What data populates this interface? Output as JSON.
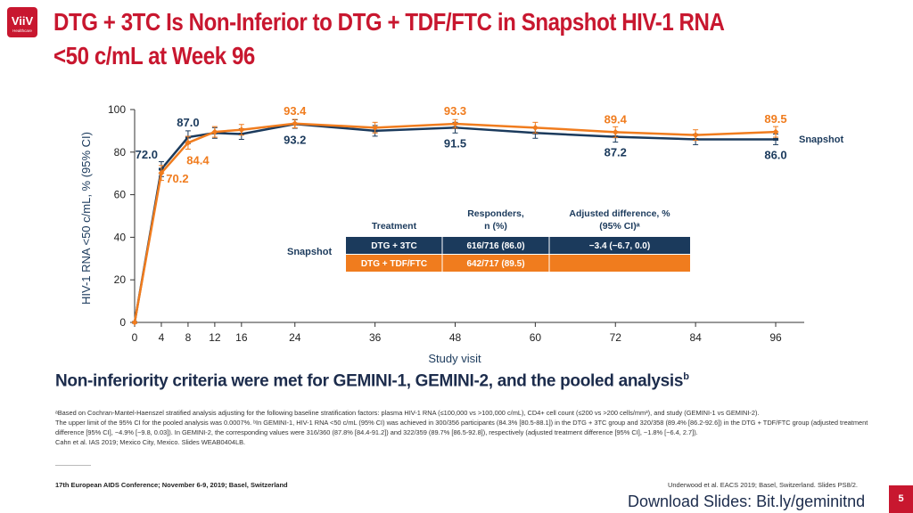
{
  "slide": {
    "logo_text": "ViiV",
    "logo_subtext": "Healthcare",
    "title_line1": "DTG + 3TC Is Non-Inferior to DTG + TDF/FTC in Snapshot HIV-1 RNA",
    "title_line2": "<50 c/mL at Week 96",
    "subheading": "Non-inferiority criteria were met for GEMINI-1, GEMINI-2, and the pooled analysis",
    "subheading_sup": "b",
    "footnote_1": "ᵃBased on Cochran-Mantel-Haenszel stratified analysis adjusting for the following baseline stratification factors: plasma HIV-1 RNA (≤100,000 vs >100,000 c/mL), CD4+ cell count (≤200 vs >200 cells/mm³), and study (GEMINI-1 vs GEMINI-2).",
    "footnote_2": "The upper limit of the 95% CI for the pooled analysis was 0.0007%. ᵇIn GEMINI-1, HIV-1 RNA <50 c/mL (95% CI) was achieved in 300/356 participants (84.3% [80.5-88.1]) in the DTG + 3TC group and 320/358 (89.4% [86.2-92.6]) in the DTG + TDF/FTC group (adjusted treatment difference [95% CI], −4.9% [−9.8, 0.03]). In GEMINI-2, the corresponding values were 316/360 (87.8% [84.4-91.2]) and 322/359 (89.7% [86.5-92.8]), respectively (adjusted treatment difference [95% CI], −1.8% [−6.4, 2.7]).",
    "footnote_3": "Cahn et al. IAS 2019; Mexico City, Mexico. Slides WEAB0404LB.",
    "conference": "17th European AIDS Conference; November 6-9, 2019; Basel, Switzerland",
    "reference": "Underwood et al. EACS 2019; Basel, Switzerland. Slides PS8/2.",
    "download": "Download Slides: Bit.ly/geminitnd",
    "page_number": "5"
  },
  "chart_data": {
    "type": "line",
    "xlabel": "Study visit",
    "ylabel": "HIV-1 RNA <50 c/mL, % (95% CI)",
    "ylim": [
      0,
      100
    ],
    "yticks": [
      0,
      20,
      40,
      60,
      80,
      100
    ],
    "xticks": [
      0,
      4,
      8,
      12,
      16,
      24,
      36,
      48,
      60,
      72,
      84,
      96
    ],
    "x": [
      0,
      4,
      8,
      12,
      16,
      24,
      36,
      48,
      60,
      72,
      84,
      96
    ],
    "series_end_label": "Snapshot",
    "series": [
      {
        "name": "DTG + 3TC",
        "color": "#1b3a5c",
        "values": [
          0,
          72.0,
          87.0,
          89,
          88.5,
          93.2,
          90,
          91.5,
          89,
          87.2,
          86,
          86.0
        ],
        "ci_half": [
          0,
          3.5,
          3,
          2.5,
          2.5,
          2,
          2.5,
          2.5,
          2.5,
          2.5,
          2.5,
          2.5
        ],
        "labels": [
          {
            "x": 4,
            "text": "72.0",
            "pos": "above-left"
          },
          {
            "x": 8,
            "text": "87.0",
            "pos": "above"
          },
          {
            "x": 24,
            "text": "93.2",
            "pos": "below"
          },
          {
            "x": 48,
            "text": "91.5",
            "pos": "below"
          },
          {
            "x": 72,
            "text": "87.2",
            "pos": "below"
          },
          {
            "x": 96,
            "text": "86.0",
            "pos": "below"
          }
        ]
      },
      {
        "name": "DTG + TDF/FTC",
        "color": "#f07c1e",
        "values": [
          0,
          70.2,
          84.4,
          89.5,
          90.5,
          93.4,
          91.5,
          93.3,
          91.5,
          89.4,
          88,
          89.5
        ],
        "ci_half": [
          0,
          3.5,
          3,
          2.5,
          2.5,
          2,
          2.5,
          2,
          2.5,
          2.5,
          2.5,
          2.5
        ],
        "labels": [
          {
            "x": 4,
            "text": "70.2",
            "pos": "below"
          },
          {
            "x": 8,
            "text": "84.4",
            "pos": "below"
          },
          {
            "x": 24,
            "text": "93.4",
            "pos": "above"
          },
          {
            "x": 48,
            "text": "93.3",
            "pos": "above"
          },
          {
            "x": 72,
            "text": "89.4",
            "pos": "above"
          },
          {
            "x": 96,
            "text": "89.5",
            "pos": "above"
          }
        ]
      }
    ],
    "table": {
      "side_label": "Snapshot",
      "headers": [
        "Treatment",
        "Responders, n (%)",
        "Adjusted difference, % (95% CI)ᵃ"
      ],
      "rows": [
        {
          "treatment": "DTG + 3TC",
          "responders": "616/716 (86.0)",
          "difference": "−3.4 (−6.7, 0.0)",
          "color": "#1b3a5c"
        },
        {
          "treatment": "DTG + TDF/FTC",
          "responders": "642/717 (89.5)",
          "difference": "",
          "color": "#f07c1e"
        }
      ]
    }
  }
}
